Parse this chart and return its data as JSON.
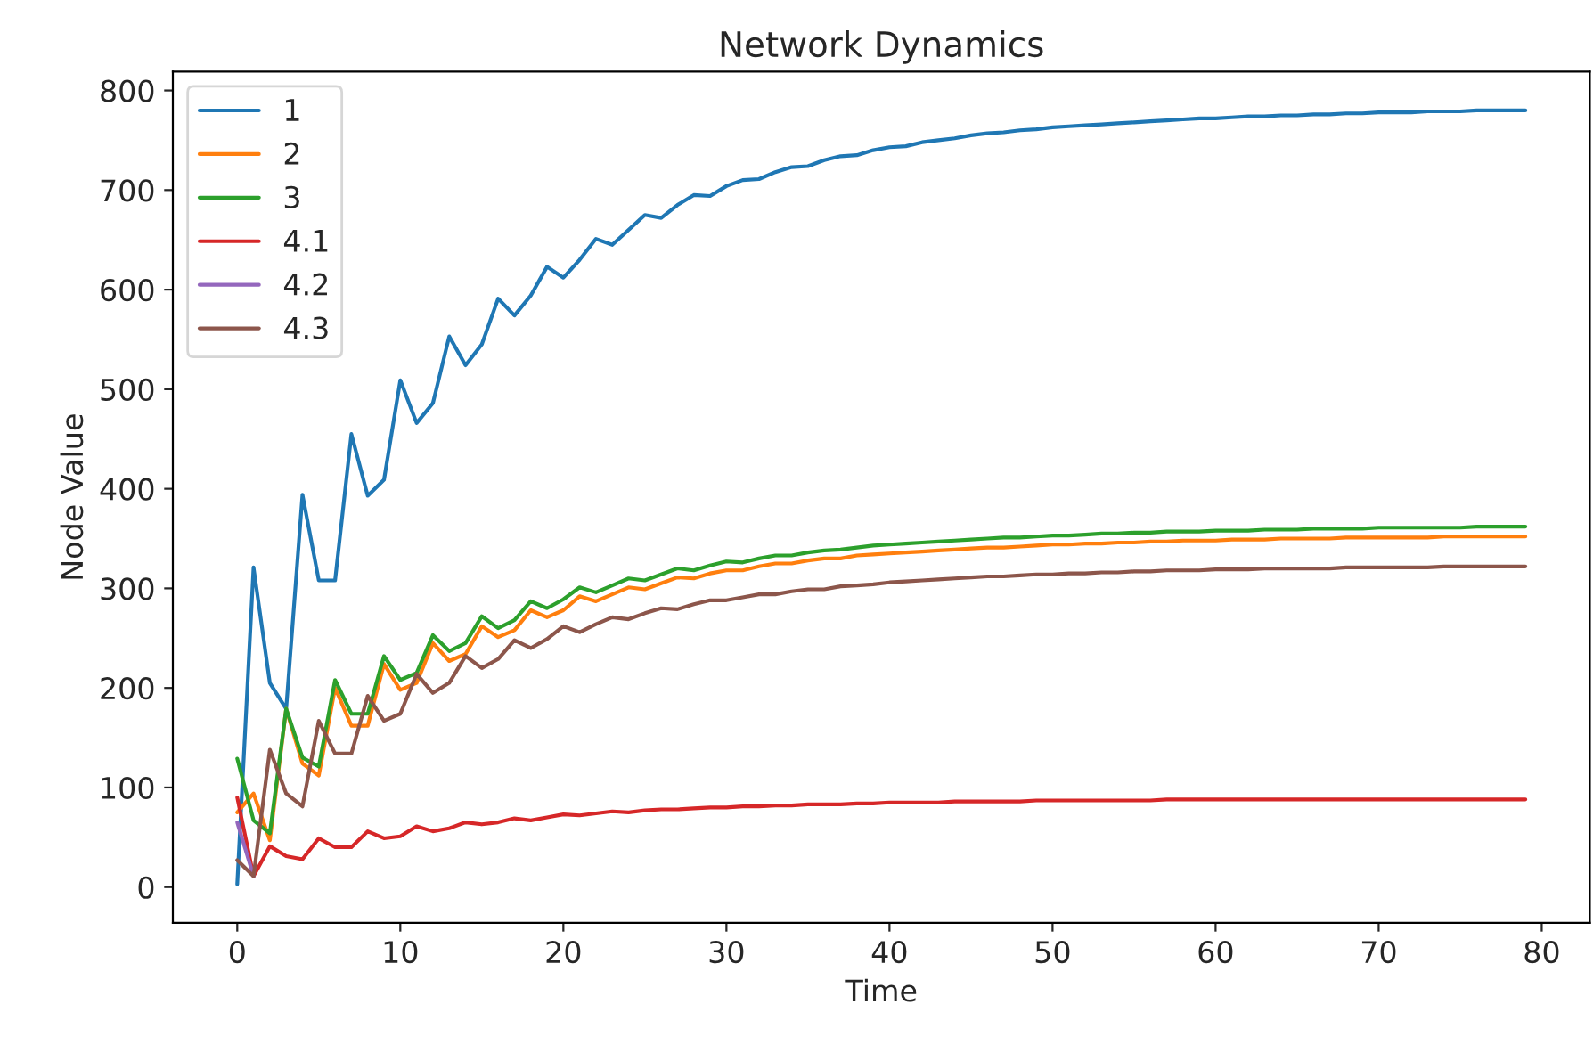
{
  "chart_data": {
    "type": "line",
    "title": "Network Dynamics",
    "xlabel": "Time",
    "ylabel": "Node Value",
    "x": [
      0,
      1,
      2,
      3,
      4,
      5,
      6,
      7,
      8,
      9,
      10,
      11,
      12,
      13,
      14,
      15,
      16,
      17,
      18,
      19,
      20,
      21,
      22,
      23,
      24,
      25,
      26,
      27,
      28,
      29,
      30,
      31,
      32,
      33,
      34,
      35,
      36,
      37,
      38,
      39,
      40,
      41,
      42,
      43,
      44,
      45,
      46,
      47,
      48,
      49,
      50,
      51,
      52,
      53,
      54,
      55,
      56,
      57,
      58,
      59,
      60,
      61,
      62,
      63,
      64,
      65,
      66,
      67,
      68,
      69,
      70,
      71,
      72,
      73,
      74,
      75,
      76,
      77,
      78,
      79
    ],
    "series": [
      {
        "name": "1",
        "color": "#1f77b4",
        "values": [
          3,
          321,
          205,
          179,
          394,
          308,
          308,
          455,
          393,
          409,
          509,
          466,
          486,
          553,
          524,
          545,
          591,
          574,
          594,
          623,
          612,
          630,
          651,
          645,
          660,
          675,
          672,
          685,
          695,
          694,
          704,
          710,
          711,
          718,
          723,
          724,
          730,
          734,
          735,
          740,
          743,
          744,
          748,
          750,
          752,
          755,
          757,
          758,
          760,
          761,
          763,
          764,
          765,
          766,
          767,
          768,
          769,
          770,
          771,
          772,
          772,
          773,
          774,
          774,
          775,
          775,
          776,
          776,
          777,
          777,
          778,
          778,
          778,
          779,
          779,
          779,
          780,
          780,
          780,
          780
        ]
      },
      {
        "name": "2",
        "color": "#ff7f0e",
        "values": [
          75,
          94,
          47,
          179,
          124,
          112,
          200,
          162,
          162,
          224,
          198,
          205,
          245,
          227,
          234,
          262,
          251,
          258,
          278,
          271,
          278,
          292,
          287,
          294,
          301,
          299,
          305,
          311,
          310,
          315,
          318,
          318,
          322,
          325,
          325,
          328,
          330,
          330,
          333,
          334,
          335,
          336,
          337,
          338,
          339,
          340,
          341,
          341,
          342,
          343,
          344,
          344,
          345,
          345,
          346,
          346,
          347,
          347,
          348,
          348,
          348,
          349,
          349,
          349,
          350,
          350,
          350,
          350,
          351,
          351,
          351,
          351,
          351,
          351,
          352,
          352,
          352,
          352,
          352,
          352
        ]
      },
      {
        "name": "3",
        "color": "#2ca02c",
        "values": [
          129,
          67,
          54,
          179,
          130,
          121,
          208,
          174,
          174,
          232,
          208,
          215,
          253,
          237,
          245,
          272,
          260,
          268,
          287,
          280,
          289,
          301,
          296,
          303,
          310,
          308,
          314,
          320,
          318,
          323,
          327,
          326,
          330,
          333,
          333,
          336,
          338,
          339,
          341,
          343,
          344,
          345,
          346,
          347,
          348,
          349,
          350,
          351,
          351,
          352,
          353,
          353,
          354,
          355,
          355,
          356,
          356,
          357,
          357,
          357,
          358,
          358,
          358,
          359,
          359,
          359,
          360,
          360,
          360,
          360,
          361,
          361,
          361,
          361,
          361,
          361,
          362,
          362,
          362,
          362
        ]
      },
      {
        "name": "4.1",
        "color": "#d62728",
        "values": [
          90,
          11,
          41,
          31,
          28,
          49,
          40,
          40,
          56,
          49,
          51,
          61,
          56,
          59,
          65,
          63,
          65,
          69,
          67,
          70,
          73,
          72,
          74,
          76,
          75,
          77,
          78,
          78,
          79,
          80,
          80,
          81,
          81,
          82,
          82,
          83,
          83,
          83,
          84,
          84,
          85,
          85,
          85,
          85,
          86,
          86,
          86,
          86,
          86,
          87,
          87,
          87,
          87,
          87,
          87,
          87,
          87,
          88,
          88,
          88,
          88,
          88,
          88,
          88,
          88,
          88,
          88,
          88,
          88,
          88,
          88,
          88,
          88,
          88,
          88,
          88,
          88,
          88,
          88,
          88
        ]
      },
      {
        "name": "4.2",
        "color": "#9467bd",
        "x": [
          0,
          1
        ],
        "values": [
          65,
          11
        ]
      },
      {
        "name": "4.3",
        "color": "#8c564b",
        "values": [
          27,
          11,
          138,
          94,
          81,
          167,
          134,
          134,
          192,
          167,
          174,
          214,
          195,
          205,
          232,
          220,
          229,
          248,
          240,
          249,
          262,
          256,
          264,
          271,
          269,
          275,
          280,
          279,
          284,
          288,
          288,
          291,
          294,
          294,
          297,
          299,
          299,
          302,
          303,
          304,
          306,
          307,
          308,
          309,
          310,
          311,
          312,
          312,
          313,
          314,
          314,
          315,
          315,
          316,
          316,
          317,
          317,
          318,
          318,
          318,
          319,
          319,
          319,
          320,
          320,
          320,
          320,
          320,
          321,
          321,
          321,
          321,
          321,
          321,
          322,
          322,
          322,
          322,
          322,
          322
        ]
      }
    ],
    "xlim": [
      -3.95,
      82.95
    ],
    "ylim": [
      -36,
      819
    ],
    "xticks": [
      0,
      10,
      20,
      30,
      40,
      50,
      60,
      70,
      80
    ],
    "yticks": [
      0,
      100,
      200,
      300,
      400,
      500,
      600,
      700,
      800
    ],
    "legend": "top left",
    "grid": false
  }
}
